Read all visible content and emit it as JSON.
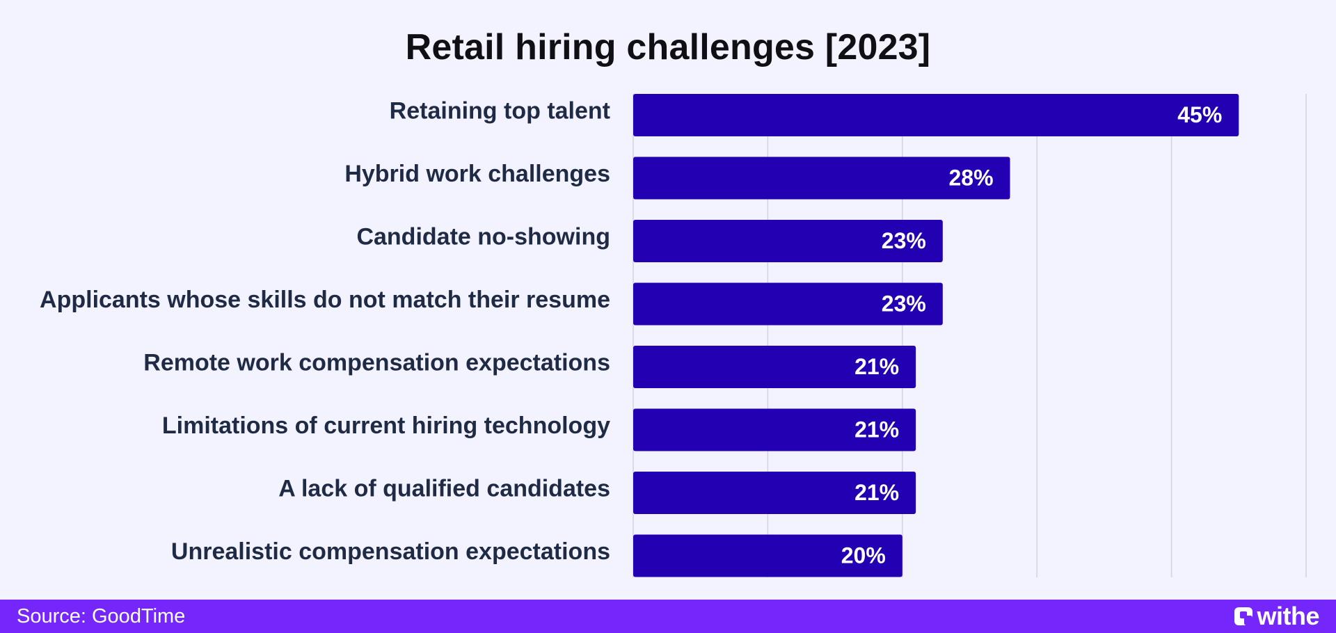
{
  "chart_data": {
    "type": "bar",
    "orientation": "horizontal",
    "title": "Retail hiring challenges [2023]",
    "categories": [
      "Retaining top talent",
      "Hybrid work challenges",
      "Candidate no-showing",
      "Applicants whose skills do not match their resume",
      "Remote work compensation expectations",
      "Limitations of current hiring technology",
      "A lack of qualified candidates",
      "Unrealistic compensation expectations"
    ],
    "values": [
      45,
      28,
      23,
      23,
      21,
      21,
      21,
      20
    ],
    "value_labels": [
      "45%",
      "28%",
      "23%",
      "23%",
      "21%",
      "21%",
      "21%",
      "20%"
    ],
    "xlim": [
      0,
      50
    ],
    "grid": true,
    "legend": "none",
    "colors": {
      "bar": "#2400b3",
      "bar_label": "#ffffff",
      "category_label": "#1f2a44",
      "grid": "#d3d2df",
      "background": "#f3f2ff"
    }
  },
  "footer": {
    "source": "Source: GoodTime",
    "logo_text": "withe",
    "logo_icon": "withe-logo-icon",
    "background": "#7526fb"
  }
}
